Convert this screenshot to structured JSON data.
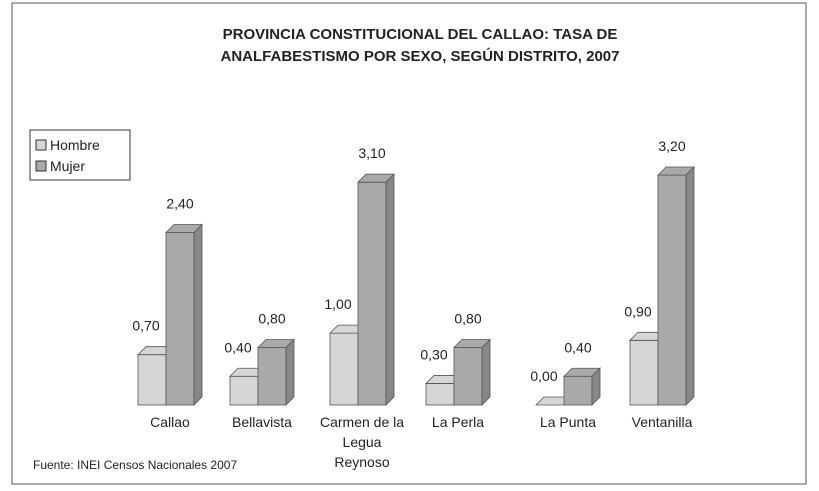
{
  "chart_data": {
    "type": "bar",
    "title": "PROVINCIA CONSTITUCIONAL DEL CALLAO: TASA DE ANALFABESTISMO POR SEXO, SEGÚN DISTRITO, 2007",
    "categories": [
      "Callao",
      "Bellavista",
      "Carmen de la Legua Reynoso",
      "La Perla",
      "La Punta",
      "Ventanilla"
    ],
    "series": [
      {
        "name": "Hombre",
        "color": "#d6d6d6",
        "values": [
          0.7,
          0.4,
          1.0,
          0.3,
          0.0,
          0.9
        ],
        "value_labels": [
          "0,70",
          "0,40",
          "1,00",
          "0,30",
          "0,00",
          "0,90"
        ]
      },
      {
        "name": "Mujer",
        "color": "#a9a9a9",
        "values": [
          2.4,
          0.8,
          3.1,
          0.8,
          0.4,
          3.2
        ],
        "value_labels": [
          "2,40",
          "0,80",
          "3,10",
          "0,80",
          "0,40",
          "3,20"
        ]
      }
    ],
    "legend": "top-left",
    "source": "Fuente: INEI Censos Nacionales 2007"
  }
}
